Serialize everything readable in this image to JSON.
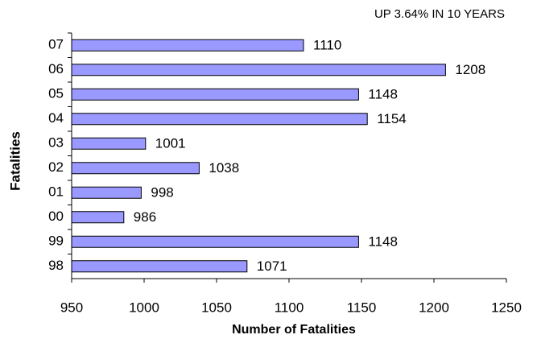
{
  "chart_data": {
    "type": "barh",
    "title": "UP 3.64% IN 10 YEARS",
    "xlabel": "Number of Fatalities",
    "ylabel": "Fatalities",
    "categories": [
      "07",
      "06",
      "05",
      "04",
      "03",
      "02",
      "01",
      "00",
      "99",
      "98"
    ],
    "values": [
      1110,
      1208,
      1148,
      1154,
      1001,
      1038,
      998,
      986,
      1148,
      1071
    ],
    "color": "#9999ff",
    "xlim": [
      950,
      1250
    ],
    "xticks": [
      950,
      1000,
      1050,
      1100,
      1150,
      1200,
      1250
    ],
    "grid": false
  }
}
